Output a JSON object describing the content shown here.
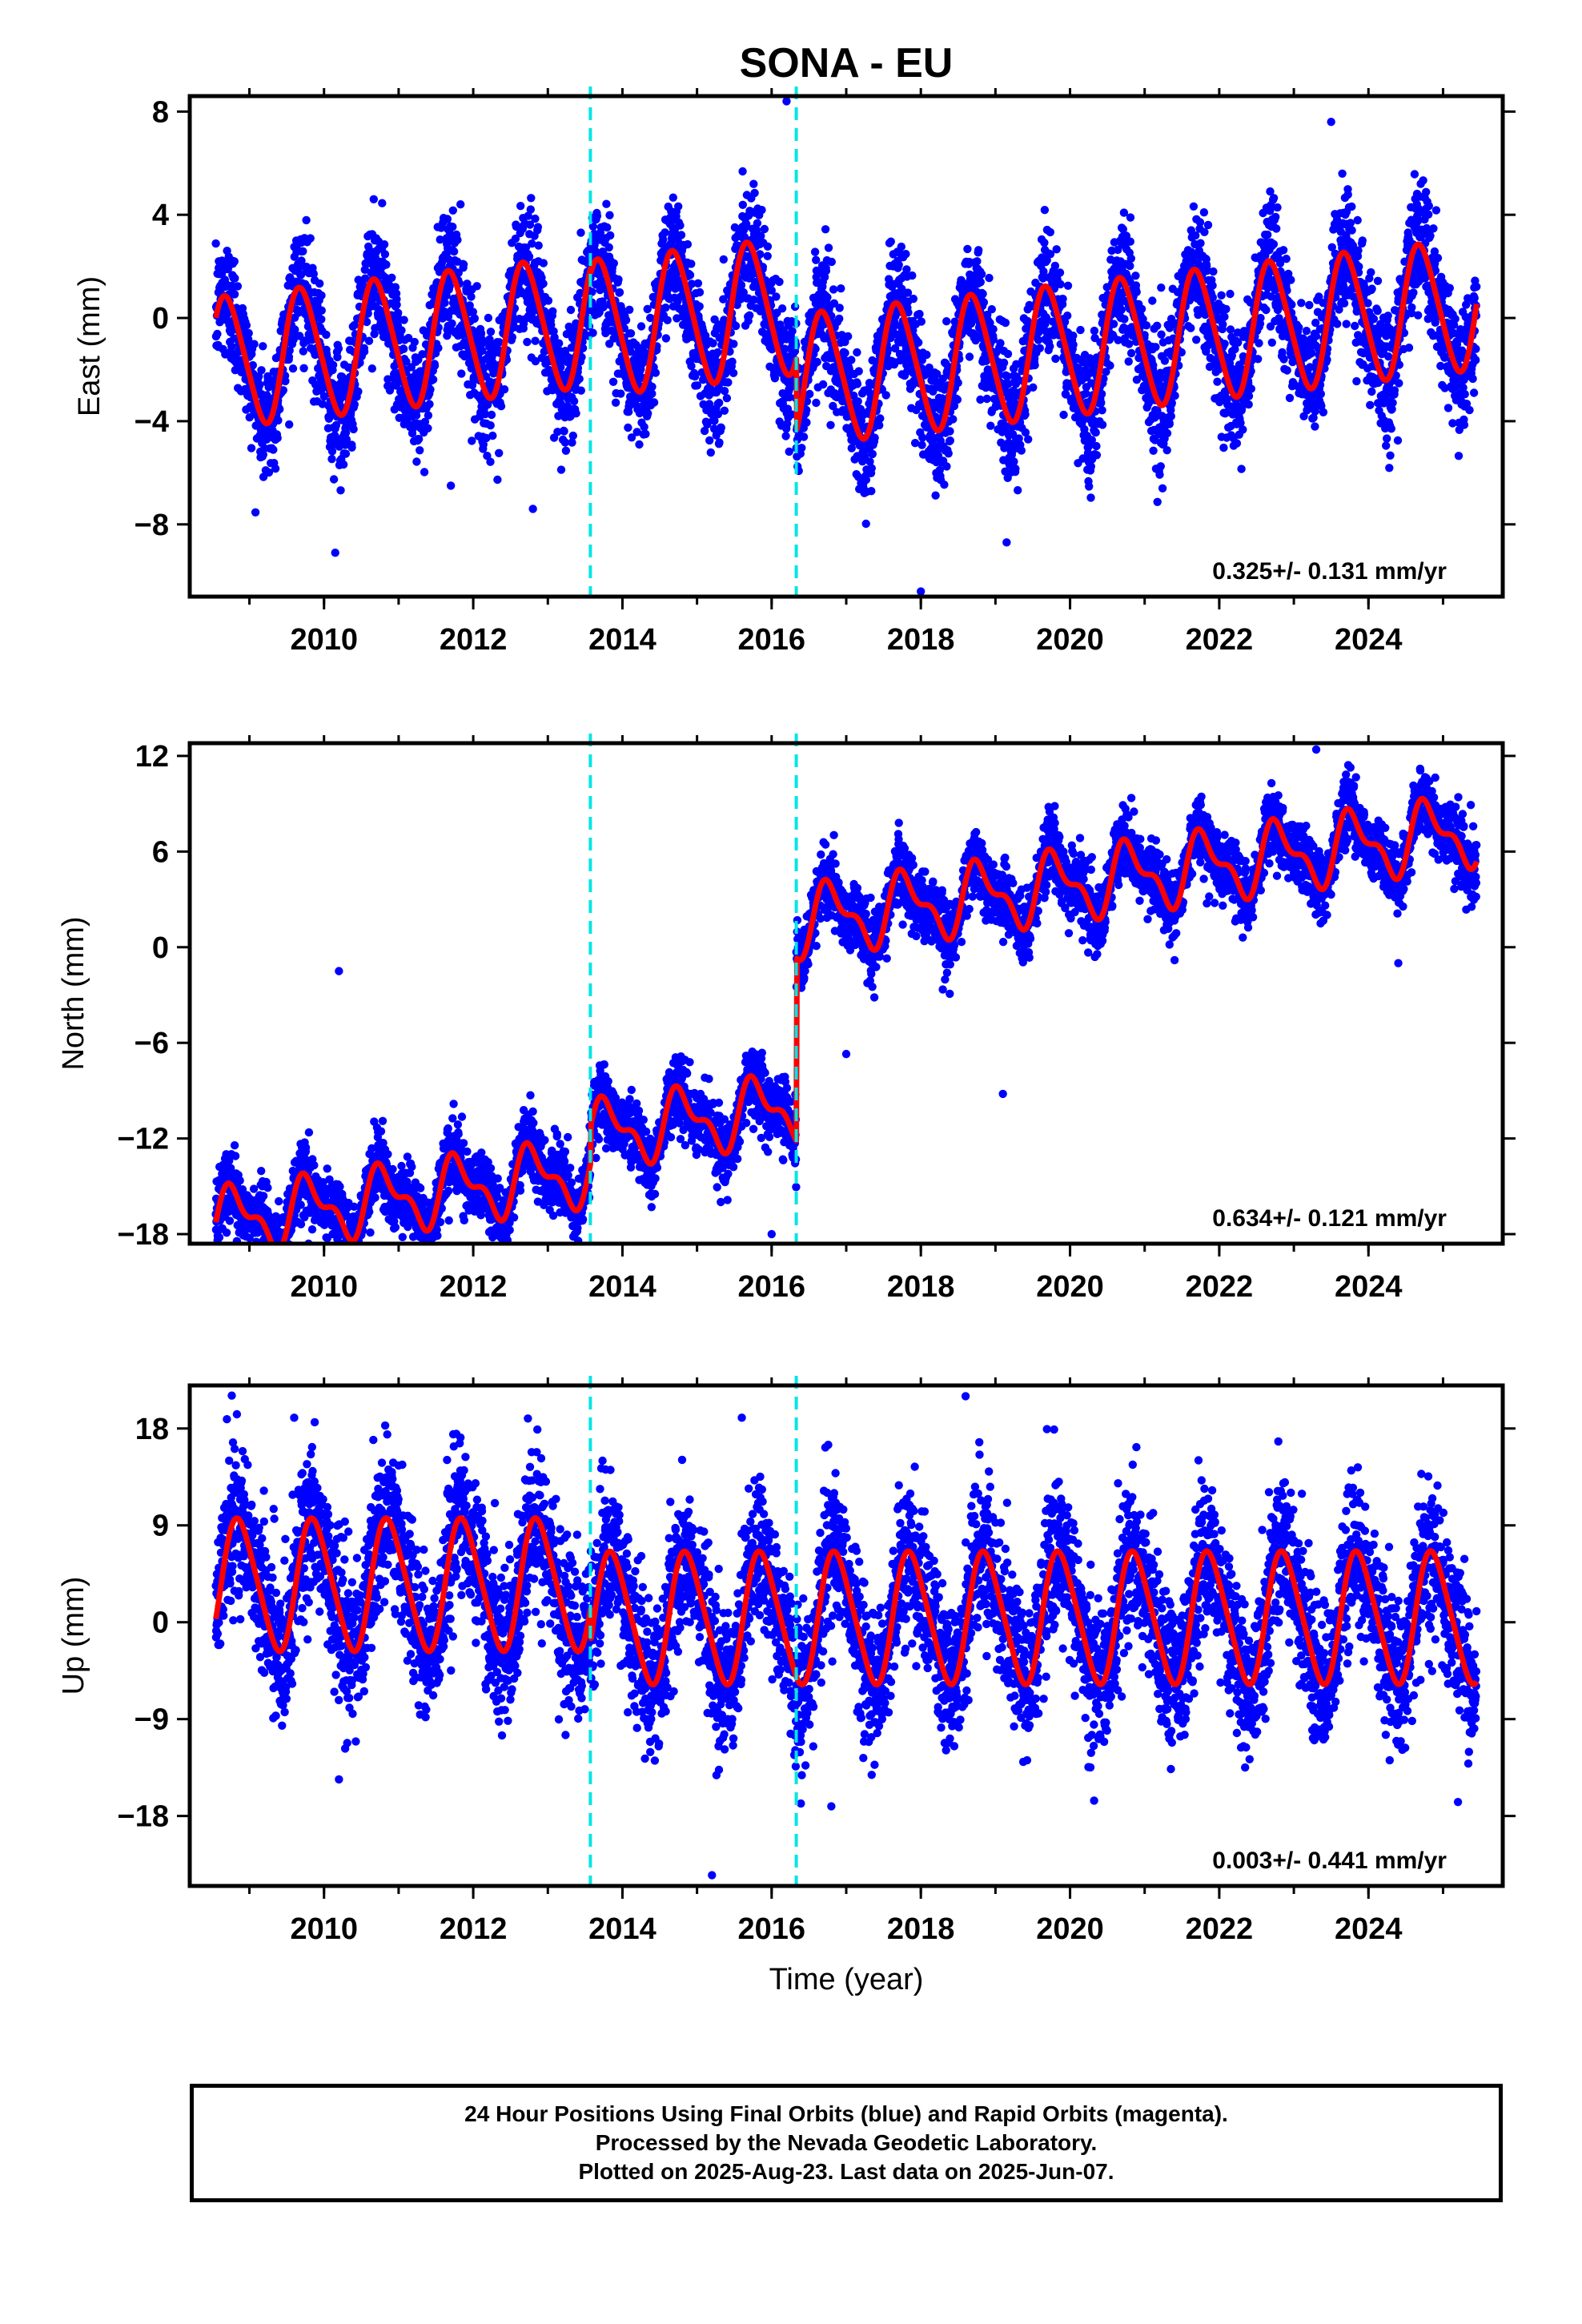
{
  "title": "SONA - EU",
  "footer": {
    "line1": "24 Hour Positions Using Final Orbits (blue) and Rapid Orbits (magenta).",
    "line2": "Processed by the Nevada Geodetic Laboratory.",
    "line3": "Plotted on 2025-Aug-23. Last data on 2025-Jun-07."
  },
  "colors": {
    "scatter": "#0000ff",
    "model": "#ff0000",
    "breaks": "#00e5e5",
    "frame": "#000000"
  },
  "chart_data": [
    {
      "type": "scatter",
      "panel": "east",
      "ylabel": "East (mm)",
      "xlim": [
        2008.2,
        2025.8
      ],
      "ylim": [
        -10.8,
        8.6
      ],
      "yticks": [
        8,
        4,
        0,
        -4,
        -8
      ],
      "ytick_labels": [
        "8",
        "4",
        "0",
        "−4",
        "−8"
      ],
      "xticks": [
        2010,
        2012,
        2014,
        2016,
        2018,
        2020,
        2022,
        2024
      ],
      "rate_label": "0.325+/- 0.131 mm/yr",
      "breaks": [
        2013.57,
        2016.33
      ],
      "model": {
        "segments": [
          {
            "from": 2008.55,
            "to": 2013.57,
            "offset": 1.0,
            "slope": 0.325,
            "amp": 2.5,
            "phase": 0.45,
            "amp2": 0.3
          },
          {
            "from": 2013.57,
            "to": 2016.33,
            "offset": 0.7,
            "slope": 0.325,
            "amp": 2.6,
            "phase": 0.45,
            "amp2": 0.3
          },
          {
            "from": 2016.33,
            "to": 2025.45,
            "offset": -2.2,
            "slope": 0.325,
            "amp": 2.5,
            "phase": 0.45,
            "amp2": 0.3
          }
        ]
      },
      "noise": 1.1,
      "outliers": [
        [
          2010.15,
          -9.1
        ],
        [
          2018.0,
          -10.6
        ],
        [
          2019.15,
          -8.7
        ],
        [
          2016.2,
          8.4
        ],
        [
          2023.5,
          7.6
        ],
        [
          2011.7,
          -6.5
        ],
        [
          2012.8,
          -7.4
        ]
      ]
    },
    {
      "type": "scatter",
      "panel": "north",
      "ylabel": "North (mm)",
      "xlim": [
        2008.2,
        2025.8
      ],
      "ylim": [
        -18.6,
        12.8
      ],
      "yticks": [
        12,
        6,
        0,
        -6,
        -12,
        -18
      ],
      "ytick_labels": [
        "12",
        "6",
        "0",
        "−6",
        "−12",
        "−18"
      ],
      "xticks": [
        2010,
        2012,
        2014,
        2016,
        2018,
        2020,
        2022,
        2024
      ],
      "rate_label": "0.634+/- 0.121 mm/yr",
      "breaks": [
        2013.57,
        2016.33
      ],
      "model": {
        "segments": [
          {
            "from": 2008.55,
            "to": 2013.57,
            "offset": -11.9,
            "slope": 0.634,
            "amp": 1.8,
            "phase": 0.55,
            "amp2": 0.9
          },
          {
            "from": 2013.57,
            "to": 2016.33,
            "offset": -9.6,
            "slope": 0.634,
            "amp": 1.8,
            "phase": 0.55,
            "amp2": 0.9
          },
          {
            "from": 2016.33,
            "to": 2025.45,
            "offset": 2.0,
            "slope": 0.634,
            "amp": 1.9,
            "phase": 0.55,
            "amp2": 0.9
          }
        ]
      },
      "noise": 1.0,
      "outliers": [
        [
          2010.2,
          -1.5
        ],
        [
          2012.1,
          -16.8
        ],
        [
          2016.0,
          -18.0
        ],
        [
          2017.0,
          -6.7
        ],
        [
          2019.1,
          -9.2
        ],
        [
          2023.3,
          12.4
        ],
        [
          2024.4,
          -1.0
        ]
      ]
    },
    {
      "type": "scatter",
      "panel": "up",
      "ylabel": "Up (mm)",
      "xlabel": "Time (year)",
      "xlim": [
        2008.2,
        2025.8
      ],
      "ylim": [
        -24.5,
        22.0
      ],
      "yticks": [
        18,
        9,
        0,
        -9,
        -18
      ],
      "ytick_labels": [
        "18",
        "9",
        "0",
        "−9",
        "−18"
      ],
      "xticks": [
        2010,
        2012,
        2014,
        2016,
        2018,
        2020,
        2022,
        2024
      ],
      "rate_label": "0.003+/- 0.441 mm/yr",
      "breaks": [
        2013.57,
        2016.33
      ],
      "model": {
        "segments": [
          {
            "from": 2008.55,
            "to": 2013.57,
            "offset": 3.5,
            "slope": 0.003,
            "amp": 6.0,
            "phase": 0.62,
            "amp2": 0.8
          },
          {
            "from": 2013.57,
            "to": 2016.33,
            "offset": 0.4,
            "slope": 0.003,
            "amp": 6.0,
            "phase": 0.62,
            "amp2": 0.8
          },
          {
            "from": 2016.33,
            "to": 2025.45,
            "offset": 0.4,
            "slope": 0.003,
            "amp": 6.0,
            "phase": 0.62,
            "amp2": 0.8
          }
        ]
      },
      "noise": 3.3,
      "outliers": [
        [
          2015.2,
          -23.5
        ],
        [
          2018.6,
          21.0
        ],
        [
          2010.2,
          -14.6
        ],
        [
          2025.2,
          -16.7
        ],
        [
          2016.8,
          -17.1
        ],
        [
          2015.6,
          19.0
        ],
        [
          2009.6,
          19.0
        ]
      ]
    }
  ]
}
